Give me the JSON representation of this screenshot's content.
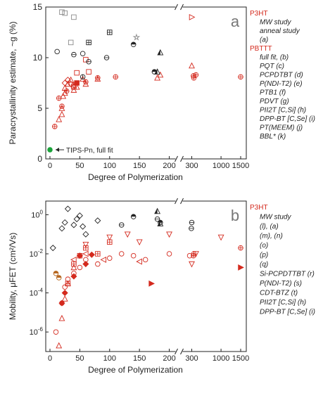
{
  "colors": {
    "red": "#d42a1e",
    "black": "#222222",
    "gray": "#8a8a8a",
    "green": "#1aa33a"
  },
  "chart_data": [
    {
      "type": "scatter",
      "panel_label": "a",
      "xlabel": "Degree of Polymerization",
      "ylabel": "Paracrystallinity estimate, ~g (%)",
      "x_scale": "linear with axis break",
      "x_ticks": [
        "0",
        "50",
        "100",
        "150",
        "200",
        "300",
        "1000",
        "1500"
      ],
      "y_ticks": [
        "0",
        "5",
        "10",
        "15"
      ],
      "ylim": [
        0,
        15
      ],
      "legend": [
        {
          "text": "P3HT",
          "kind": "group"
        },
        {
          "text": "MW study",
          "kind": "entry"
        },
        {
          "text": "anneal study",
          "kind": "entry"
        },
        {
          "text": "(a)",
          "kind": "entry"
        },
        {
          "text": "PBTTT",
          "kind": "group"
        },
        {
          "text": "full fit, (b)",
          "kind": "entry"
        },
        {
          "text": "PQT (c)",
          "kind": "entry"
        },
        {
          "text": "PCPDTBT (d)",
          "kind": "entry"
        },
        {
          "text": "P(NDI-T2) (e)",
          "kind": "entry"
        },
        {
          "text": "PTB1 (f)",
          "kind": "entry"
        },
        {
          "text": "PDVT (g)",
          "kind": "entry"
        },
        {
          "text": "PII2T [C,Si] (h)",
          "kind": "entry"
        },
        {
          "text": "DPP-BT [C,Se] (i)",
          "kind": "entry"
        },
        {
          "text": "PT(MEEM) (j)",
          "kind": "entry"
        },
        {
          "text": "BBL* (k)",
          "kind": "entry"
        }
      ],
      "annotation": "TIPS-Pn, full fit",
      "series": [
        {
          "name": "MW study",
          "x": [
            8,
            15,
            20,
            28,
            40,
            60,
            80,
            110,
            340,
            350,
            400,
            1500
          ],
          "y": [
            3.2,
            6.0,
            5.2,
            6.7,
            7.3,
            7.6,
            8.0,
            8.1,
            8.2,
            8.0,
            8.3,
            8.1
          ]
        },
        {
          "name": "anneal study",
          "x": [
            300
          ],
          "y": [
            14
          ]
        },
        {
          "name": "(a)",
          "x": [
            15,
            20,
            20,
            22,
            25,
            25,
            30,
            35,
            40,
            45,
            55,
            60,
            80,
            180,
            185,
            300
          ],
          "y": [
            3.9,
            4.4,
            5.0,
            6.2,
            6.5,
            7.0,
            7.4,
            7.8,
            6.8,
            7.1,
            7.9,
            7.4,
            7.9,
            8.0,
            8.3,
            9.2
          ]
        },
        {
          "name": "full fit",
          "x": [
            45
          ],
          "y": [
            7.5
          ]
        },
        {
          "name": "(b)",
          "x": [
            40,
            45,
            60,
            65
          ],
          "y": [
            7.1,
            8.5,
            9.8,
            8.6
          ]
        },
        {
          "name": "PQT",
          "x": [
            25,
            30,
            35,
            40
          ],
          "y": [
            7.5,
            7.8,
            7.4,
            7.1
          ]
        },
        {
          "name": "PCPDTBT",
          "x": [
            12,
            55
          ],
          "y": [
            10.6,
            10.4
          ]
        },
        {
          "name": "P(NDI-T2)",
          "x": [
            40,
            65,
            95
          ],
          "y": [
            10.3,
            9.6,
            10.0
          ]
        },
        {
          "name": "PTB1",
          "x": [
            55
          ],
          "y": [
            8.1
          ]
        },
        {
          "name": "PDVT",
          "x": [
            65,
            100
          ],
          "y": [
            11.5,
            12.5
          ]
        },
        {
          "name": "PII2T",
          "x": [
            185,
            180
          ],
          "y": [
            10.5,
            8.6
          ]
        },
        {
          "name": "DPP-BT",
          "x": [
            140,
            175
          ],
          "y": [
            11.3,
            8.6
          ]
        },
        {
          "name": "PT(MEEM)",
          "x": [
            20,
            25,
            35,
            40
          ],
          "y": [
            14.5,
            14.4,
            11.5,
            14.0
          ]
        },
        {
          "name": "BBL*",
          "x": [
            145
          ],
          "y": [
            12.0
          ]
        },
        {
          "name": "TIPS-Pn, full fit",
          "x": [
            0
          ],
          "y": [
            0.9
          ]
        }
      ]
    },
    {
      "type": "scatter",
      "panel_label": "b",
      "xlabel": "Degree of Polymerization",
      "ylabel": "Mobility, μFET (cm²/Vs)",
      "y_scale": "log",
      "x_scale": "linear with axis break",
      "x_ticks": [
        "0",
        "50",
        "100",
        "150",
        "200",
        "300",
        "1000",
        "1500"
      ],
      "y_ticks": [
        "10-6",
        "10-4",
        "10-2",
        "100"
      ],
      "ylim": [
        1e-07,
        5
      ],
      "legend": [
        {
          "text": "P3HT",
          "kind": "group"
        },
        {
          "text": "MW study",
          "kind": "entry"
        },
        {
          "text": "(l), (a)",
          "kind": "entry"
        },
        {
          "text": "(m), (n)",
          "kind": "entry"
        },
        {
          "text": "(o)",
          "kind": "entry"
        },
        {
          "text": "(p)",
          "kind": "entry"
        },
        {
          "text": "(q)",
          "kind": "entry"
        },
        {
          "text": "Si-PCPDTTBT (r)",
          "kind": "entry"
        },
        {
          "text": "P(NDI-T2) (s)",
          "kind": "entry"
        },
        {
          "text": "CDT-BTZ (t)",
          "kind": "entry"
        },
        {
          "text": "PII2T [C,Si] (h)",
          "kind": "entry"
        },
        {
          "text": "DPP-BT [C,Se] (i)",
          "kind": "entry"
        }
      ],
      "series": [
        {
          "name": "MW study",
          "x": [
            340,
            350,
            1500
          ],
          "y": [
            0.008,
            0.01,
            0.02
          ]
        },
        {
          "name": "(l)",
          "x": [
            10,
            20,
            25,
            30,
            40,
            50,
            60,
            80,
            100,
            120,
            140,
            160,
            200,
            250
          ],
          "y": [
            1e-06,
            3e-05,
            0.0002,
            0.0005,
            0.001,
            0.002,
            0.005,
            0.003,
            0.006,
            0.01,
            0.008,
            0.005,
            0.01,
            0.008
          ]
        },
        {
          "name": "(a)",
          "x": [
            15,
            20,
            25,
            30,
            40
          ],
          "y": [
            2e-07,
            5e-06,
            5e-05,
            0.0003,
            0.002
          ]
        },
        {
          "name": "(m)",
          "x": [
            30,
            40,
            50,
            60,
            80,
            100
          ],
          "y": [
            0.0003,
            0.003,
            0.008,
            0.02,
            0.01,
            0.04
          ]
        },
        {
          "name": "(n)",
          "x": [
            40,
            60,
            90,
            150
          ],
          "y": [
            0.005,
            0.01,
            0.005,
            0.004
          ]
        },
        {
          "name": "(o)",
          "x": [
            60,
            100,
            130,
            150,
            200,
            300,
            400,
            1000
          ],
          "y": [
            0.03,
            0.07,
            0.1,
            0.04,
            0.1,
            0.003,
            0.01,
            0.07
          ]
        },
        {
          "name": "(p)",
          "x": [
            20,
            25,
            40,
            50,
            60,
            70
          ],
          "y": [
            3e-05,
            0.0001,
            0.0007,
            0.008,
            0.003,
            0.009
          ]
        },
        {
          "name": "(q)",
          "x": [
            170,
            1500
          ],
          "y": [
            0.0003,
            0.002
          ]
        },
        {
          "name": "Si-PCPDTTBT",
          "x": [
            10,
            15
          ],
          "y": [
            0.001,
            0.0006
          ]
        },
        {
          "name": "P(NDI-T2)",
          "x": [
            120,
            180,
            290,
            300
          ],
          "y": [
            0.3,
            0.6,
            0.2,
            0.4
          ]
        },
        {
          "name": "CDT-BTZ",
          "x": [
            5,
            20,
            25,
            30,
            40,
            45,
            50,
            55,
            60,
            80
          ],
          "y": [
            0.02,
            0.2,
            0.4,
            2.0,
            0.3,
            0.6,
            0.9,
            0.25,
            0.1,
            0.5
          ]
        },
        {
          "name": "PII2T",
          "x": [
            180,
            185
          ],
          "y": [
            1.5,
            0.35
          ]
        },
        {
          "name": "DPP-BT",
          "x": [
            140,
            185
          ],
          "y": [
            0.8,
            0.4
          ]
        }
      ]
    }
  ]
}
